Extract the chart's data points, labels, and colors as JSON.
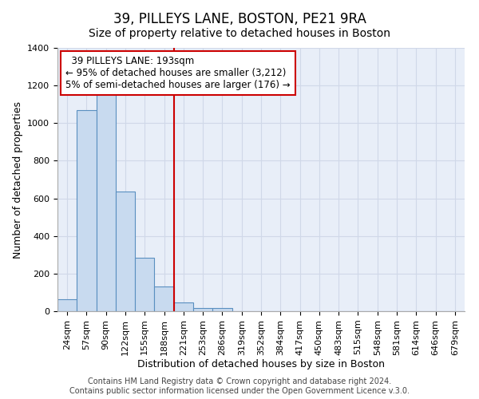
{
  "title": "39, PILLEYS LANE, BOSTON, PE21 9RA",
  "subtitle": "Size of property relative to detached houses in Boston",
  "xlabel": "Distribution of detached houses by size in Boston",
  "ylabel": "Number of detached properties",
  "bin_labels": [
    "24sqm",
    "57sqm",
    "90sqm",
    "122sqm",
    "155sqm",
    "188sqm",
    "221sqm",
    "253sqm",
    "286sqm",
    "319sqm",
    "352sqm",
    "384sqm",
    "417sqm",
    "450sqm",
    "483sqm",
    "515sqm",
    "548sqm",
    "581sqm",
    "614sqm",
    "646sqm",
    "679sqm"
  ],
  "bar_values": [
    65,
    1070,
    1160,
    635,
    285,
    130,
    48,
    18,
    18,
    0,
    0,
    0,
    0,
    0,
    0,
    0,
    0,
    0,
    0,
    0,
    0
  ],
  "bar_color": "#c8daef",
  "bar_edge_color": "#5a8fc0",
  "vline_x": 5.5,
  "vline_color": "#cc0000",
  "annotation_text": "  39 PILLEYS LANE: 193sqm  \n← 95% of detached houses are smaller (3,212)\n5% of semi-detached houses are larger (176) →",
  "annotation_box_color": "#ffffff",
  "annotation_box_edge_color": "#cc0000",
  "ylim": [
    0,
    1400
  ],
  "yticks": [
    0,
    200,
    400,
    600,
    800,
    1000,
    1200,
    1400
  ],
  "grid_color": "#d0d8e8",
  "background_color": "#e8eef8",
  "footnote": "Contains HM Land Registry data © Crown copyright and database right 2024.\nContains public sector information licensed under the Open Government Licence v.3.0.",
  "title_fontsize": 12,
  "subtitle_fontsize": 10,
  "label_fontsize": 9,
  "tick_fontsize": 8,
  "annot_fontsize": 8.5,
  "footnote_fontsize": 7
}
